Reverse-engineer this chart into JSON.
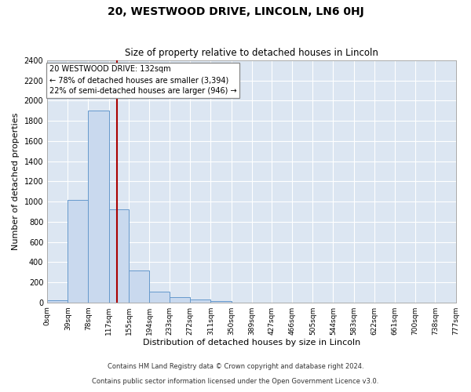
{
  "title": "20, WESTWOOD DRIVE, LINCOLN, LN6 0HJ",
  "subtitle": "Size of property relative to detached houses in Lincoln",
  "xlabel": "Distribution of detached houses by size in Lincoln",
  "ylabel": "Number of detached properties",
  "footer_line1": "Contains HM Land Registry data © Crown copyright and database right 2024.",
  "footer_line2": "Contains public sector information licensed under the Open Government Licence v3.0.",
  "bin_edges": [
    0,
    39,
    78,
    117,
    155,
    194,
    233,
    272,
    311,
    350,
    389,
    427,
    466,
    505,
    544,
    583,
    622,
    661,
    700,
    738,
    777
  ],
  "bin_labels": [
    "0sqm",
    "39sqm",
    "78sqm",
    "117sqm",
    "155sqm",
    "194sqm",
    "233sqm",
    "272sqm",
    "311sqm",
    "350sqm",
    "389sqm",
    "427sqm",
    "466sqm",
    "505sqm",
    "544sqm",
    "583sqm",
    "622sqm",
    "661sqm",
    "700sqm",
    "738sqm",
    "777sqm"
  ],
  "bar_values": [
    20,
    1020,
    1900,
    920,
    320,
    110,
    50,
    30,
    15,
    0,
    0,
    0,
    0,
    0,
    0,
    0,
    0,
    0,
    0,
    0
  ],
  "bar_color": "#c9d9ee",
  "bar_edge_color": "#6699cc",
  "vline_x": 132,
  "vline_color": "#aa0000",
  "annotation_title": "20 WESTWOOD DRIVE: 132sqm",
  "annotation_line1": "← 78% of detached houses are smaller (3,394)",
  "annotation_line2": "22% of semi-detached houses are larger (946) →",
  "annotation_box_color": "#ffffff",
  "annotation_box_edge": "#888888",
  "ylim": [
    0,
    2400
  ],
  "yticks": [
    0,
    200,
    400,
    600,
    800,
    1000,
    1200,
    1400,
    1600,
    1800,
    2000,
    2200,
    2400
  ],
  "fig_background": "#ffffff",
  "plot_background": "#dce6f2",
  "title_fontsize": 10,
  "subtitle_fontsize": 8.5
}
